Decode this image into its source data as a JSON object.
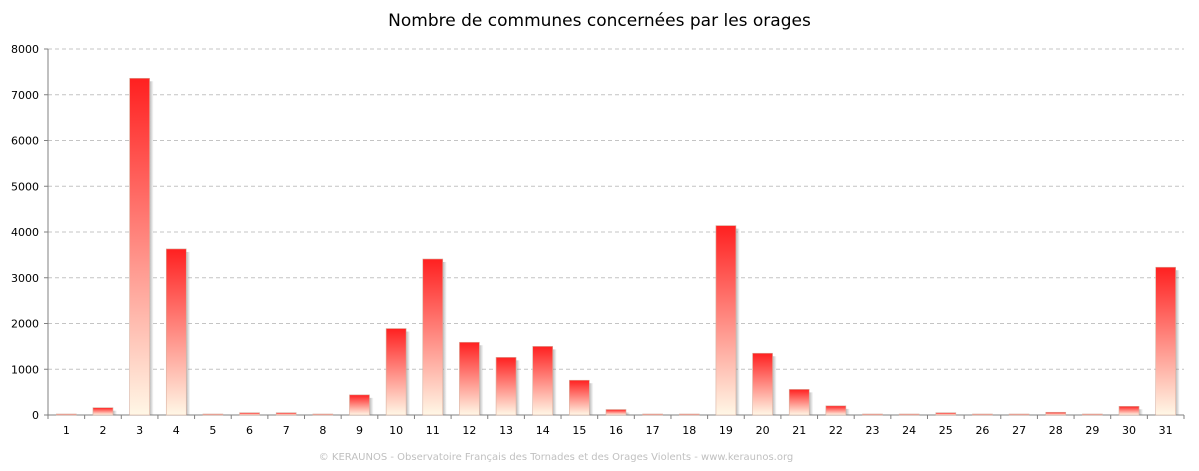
{
  "chart_data": {
    "type": "bar",
    "title": "Nombre de communes concernées par les orages",
    "xlabel": "",
    "ylabel": "",
    "ylim": [
      0,
      8000
    ],
    "yticks": [
      0,
      1000,
      2000,
      3000,
      4000,
      5000,
      6000,
      7000,
      8000
    ],
    "grid": true,
    "categories": [
      "1",
      "2",
      "3",
      "4",
      "5",
      "6",
      "7",
      "8",
      "9",
      "10",
      "11",
      "12",
      "13",
      "14",
      "15",
      "16",
      "17",
      "18",
      "19",
      "20",
      "21",
      "22",
      "23",
      "24",
      "25",
      "26",
      "27",
      "28",
      "29",
      "30",
      "31"
    ],
    "values": [
      15,
      160,
      7360,
      3630,
      10,
      50,
      50,
      15,
      440,
      1890,
      3410,
      1590,
      1260,
      1500,
      760,
      120,
      5,
      20,
      4140,
      1350,
      560,
      200,
      20,
      20,
      50,
      20,
      5,
      60,
      5,
      190,
      3230
    ],
    "colors": {
      "bar_top": "#ff2020",
      "bar_bottom": "#fff7e6",
      "grid": "#c4c4c4",
      "axis": "#808080"
    }
  },
  "footer": "© KERAUNOS - Observatoire Français des Tornades et des Orages Violents - www.keraunos.org"
}
